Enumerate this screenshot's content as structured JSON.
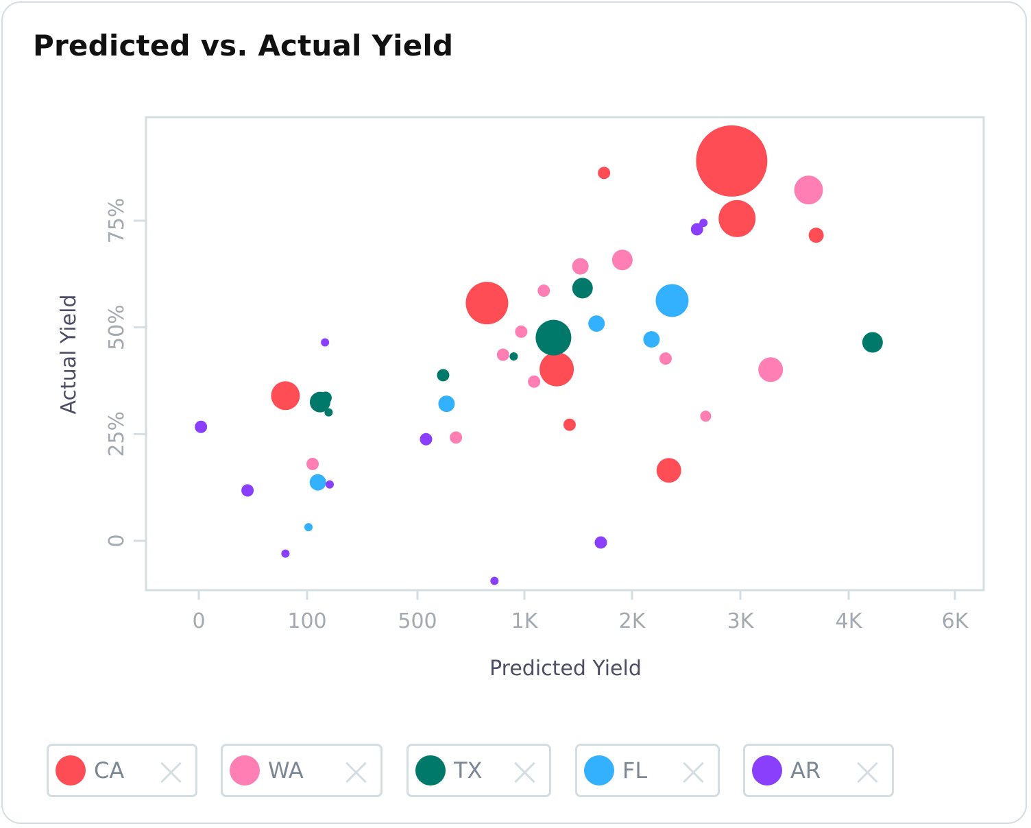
{
  "colors": {
    "CA": "#ff4d55",
    "WA": "#ff7eb3",
    "TX": "#00796b",
    "FL": "#33b1ff",
    "AR": "#8a3ffc",
    "axis": "#d3dde2",
    "tick_text": "#a2a9b0",
    "axis_title": "#4d4d66"
  },
  "chart_data": {
    "type": "scatter",
    "title": "Predicted vs. Actual Yield",
    "xlabel": "Predicted Yield",
    "ylabel": "Actual Yield",
    "x_ticks": [
      "0",
      "100",
      "500",
      "1K",
      "2K",
      "3K",
      "4K",
      "6K"
    ],
    "y_ticks": [
      "0",
      "25%",
      "50%",
      "75%"
    ],
    "y_tick_values": [
      0,
      0.25,
      0.5,
      0.75
    ],
    "ylim": [
      -0.115,
      1.0
    ],
    "bubble_sizes": "relative",
    "series": [
      {
        "name": "CA",
        "color": "#ff4d55",
        "points": [
          {
            "x": 80,
            "y": 0.34,
            "size": 21
          },
          {
            "x": 825,
            "y": 0.557,
            "size": 31
          },
          {
            "x": 1300,
            "y": 0.402,
            "size": 25
          },
          {
            "x": 1420,
            "y": 0.272,
            "size": 9
          },
          {
            "x": 1740,
            "y": 0.862,
            "size": 9
          },
          {
            "x": 2340,
            "y": 0.165,
            "size": 18
          },
          {
            "x": 2920,
            "y": 0.89,
            "size": 52
          },
          {
            "x": 2970,
            "y": 0.755,
            "size": 27
          },
          {
            "x": 3700,
            "y": 0.716,
            "size": 11
          }
        ]
      },
      {
        "name": "WA",
        "color": "#ff7eb3",
        "points": [
          {
            "x": 120,
            "y": 0.18,
            "size": 9
          },
          {
            "x": 680,
            "y": 0.242,
            "size": 9
          },
          {
            "x": 900,
            "y": 0.436,
            "size": 9
          },
          {
            "x": 985,
            "y": 0.49,
            "size": 9
          },
          {
            "x": 1090,
            "y": 0.373,
            "size": 9
          },
          {
            "x": 1180,
            "y": 0.586,
            "size": 9
          },
          {
            "x": 1520,
            "y": 0.643,
            "size": 12
          },
          {
            "x": 1910,
            "y": 0.658,
            "size": 15
          },
          {
            "x": 2310,
            "y": 0.427,
            "size": 9
          },
          {
            "x": 2680,
            "y": 0.292,
            "size": 8
          },
          {
            "x": 3280,
            "y": 0.401,
            "size": 18
          },
          {
            "x": 3630,
            "y": 0.822,
            "size": 21
          }
        ]
      },
      {
        "name": "TX",
        "color": "#00796b",
        "points": [
          {
            "x": 147,
            "y": 0.325,
            "size": 15
          },
          {
            "x": 167,
            "y": 0.335,
            "size": 9
          },
          {
            "x": 178,
            "y": 0.301,
            "size": 6
          },
          {
            "x": 620,
            "y": 0.388,
            "size": 9
          },
          {
            "x": 950,
            "y": 0.432,
            "size": 6
          },
          {
            "x": 1270,
            "y": 0.476,
            "size": 26
          },
          {
            "x": 1540,
            "y": 0.592,
            "size": 15
          },
          {
            "x": 4450,
            "y": 0.465,
            "size": 15
          }
        ]
      },
      {
        "name": "FL",
        "color": "#33b1ff",
        "points": [
          {
            "x": 105,
            "y": 0.032,
            "size": 6
          },
          {
            "x": 139,
            "y": 0.137,
            "size": 12
          },
          {
            "x": 636,
            "y": 0.321,
            "size": 12
          },
          {
            "x": 1670,
            "y": 0.509,
            "size": 12
          },
          {
            "x": 2180,
            "y": 0.472,
            "size": 12
          },
          {
            "x": 2370,
            "y": 0.563,
            "size": 24
          }
        ]
      },
      {
        "name": "AR",
        "color": "#8a3ffc",
        "points": [
          {
            "x": 2,
            "y": 0.267,
            "size": 9
          },
          {
            "x": 45,
            "y": 0.118,
            "size": 9
          },
          {
            "x": 80,
            "y": -0.03,
            "size": 6
          },
          {
            "x": 165,
            "y": 0.465,
            "size": 6
          },
          {
            "x": 182,
            "y": 0.132,
            "size": 6
          },
          {
            "x": 540,
            "y": 0.238,
            "size": 9
          },
          {
            "x": 860,
            "y": -0.094,
            "size": 6
          },
          {
            "x": 1710,
            "y": -0.004,
            "size": 9
          },
          {
            "x": 2600,
            "y": 0.73,
            "size": 9
          },
          {
            "x": 2660,
            "y": 0.745,
            "size": 6
          }
        ]
      }
    ]
  },
  "legend": [
    {
      "key": "CA",
      "label": "CA"
    },
    {
      "key": "WA",
      "label": "WA"
    },
    {
      "key": "TX",
      "label": "TX"
    },
    {
      "key": "FL",
      "label": "FL"
    },
    {
      "key": "AR",
      "label": "AR"
    }
  ]
}
